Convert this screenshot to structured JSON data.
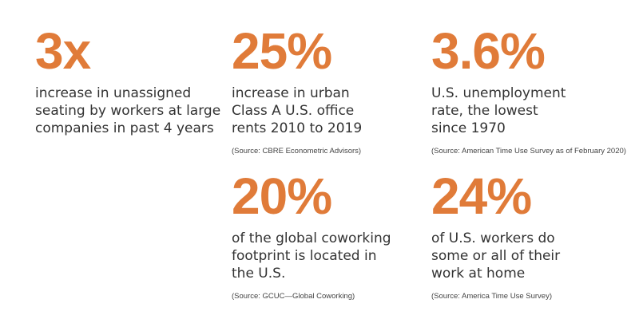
{
  "accent_color": "#e07b39",
  "stats": [
    {
      "value": "3x",
      "lines": [
        "increase in unassigned",
        "seating by workers at large",
        "companies in past 4 years"
      ],
      "source": ""
    },
    {
      "value": "25%",
      "lines": [
        "increase in urban",
        "Class A U.S. office",
        "rents 2010 to 2019"
      ],
      "source": "(Source: CBRE Econometric Advisors)"
    },
    {
      "value": "3.6%",
      "lines": [
        "U.S. unemployment",
        "rate, the lowest",
        "since 1970"
      ],
      "source": "(Source: American Time Use Survey as of February 2020)"
    },
    {
      "value": "20%",
      "lines": [
        "of the global coworking",
        "footprint is located in",
        "the U.S."
      ],
      "source": "(Source: GCUC—Global Coworking)"
    },
    {
      "value": "24%",
      "lines": [
        "of U.S. workers do",
        "some or all of their",
        "work at home"
      ],
      "source": "(Source: America Time Use Survey)"
    }
  ]
}
